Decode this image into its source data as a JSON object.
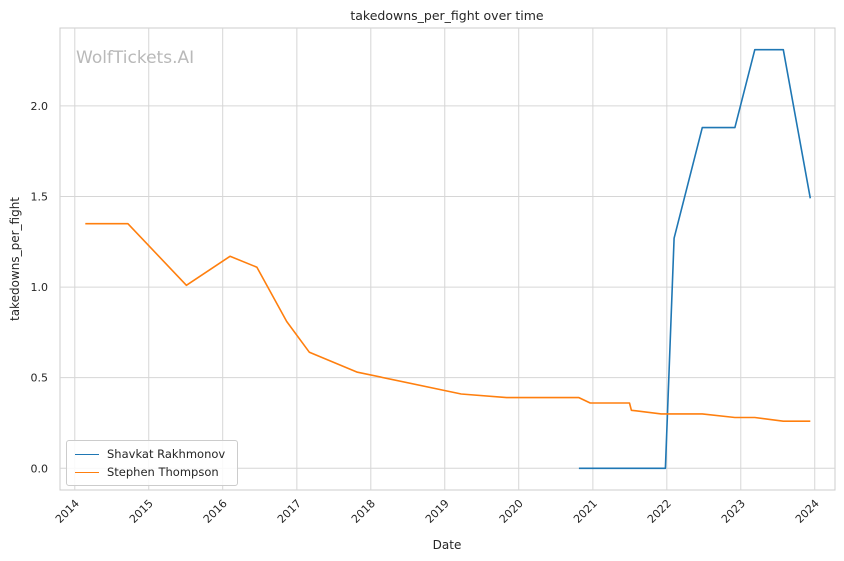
{
  "chart_data": {
    "type": "line",
    "title": "takedowns_per_fight over time",
    "xlabel": "Date",
    "ylabel": "takedowns_per_fight",
    "watermark": "WolfTickets.AI",
    "xlim": [
      "2013-10-20",
      "2024-04-10"
    ],
    "ylim": [
      -0.12,
      2.43
    ],
    "x_ticks": [
      "2014",
      "2015",
      "2016",
      "2017",
      "2018",
      "2019",
      "2020",
      "2021",
      "2022",
      "2023",
      "2024"
    ],
    "y_ticks": [
      "0.0",
      "0.5",
      "1.0",
      "1.5",
      "2.0"
    ],
    "grid": true,
    "legend_position": "lower-left",
    "series": [
      {
        "name": "Shavkat Rakhmonov",
        "color": "#1f77b4",
        "x": [
          "2020-10-24",
          "2021-12-25",
          "2022-02-06",
          "2022-06-25",
          "2022-12-03",
          "2023-03-11",
          "2023-07-30",
          "2023-12-10"
        ],
        "y": [
          0.0,
          0.0,
          1.27,
          1.88,
          1.88,
          2.31,
          2.31,
          1.49
        ]
      },
      {
        "name": "Stephen Thompson",
        "color": "#ff7f0e",
        "x": [
          "2014-02-22",
          "2014-09-20",
          "2015-07-06",
          "2016-02-06",
          "2016-06-18",
          "2016-11-12",
          "2017-03-04",
          "2017-10-27",
          "2019-03-23",
          "2019-11-02",
          "2020-10-24",
          "2020-12-19",
          "2021-07-01",
          "2021-07-10",
          "2021-12-04",
          "2022-06-25",
          "2022-12-03",
          "2023-03-11",
          "2023-07-30",
          "2023-12-10"
        ],
        "y": [
          1.35,
          1.35,
          1.01,
          1.17,
          1.11,
          0.81,
          0.64,
          0.53,
          0.41,
          0.39,
          0.39,
          0.36,
          0.36,
          0.32,
          0.3,
          0.3,
          0.28,
          0.28,
          0.26,
          0.26
        ]
      }
    ]
  }
}
